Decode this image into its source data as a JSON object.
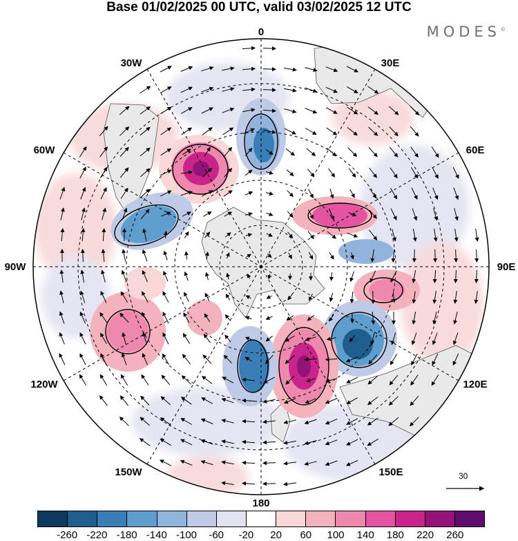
{
  "title": "Base 01/02/2025 00 UTC, valid 03/02/2025 12 UTC",
  "brand": "MODES",
  "brand_mark": "©",
  "map": {
    "projection": "south-polar-stereographic",
    "longitude_labels": {
      "top": "0",
      "top_left": "30W",
      "top_right": "30E",
      "upper_left": "60W",
      "upper_right": "60E",
      "left": "90W",
      "right": "90E",
      "lower_left": "120W",
      "lower_right": "120E",
      "bottom_left": "150W",
      "bottom_right": "150E",
      "bottom": "180"
    },
    "anomaly_centers": [
      {
        "sign": "negative",
        "level": -180,
        "lon": "~5E"
      },
      {
        "sign": "positive",
        "level": 180,
        "lon": "~25W"
      },
      {
        "sign": "negative",
        "level": -140,
        "lon": "~65W"
      },
      {
        "sign": "positive",
        "level": 140,
        "lon": "~60E"
      },
      {
        "sign": "negative",
        "level": -100,
        "lon": "~85E"
      },
      {
        "sign": "positive",
        "level": 100,
        "lon": "~100E"
      },
      {
        "sign": "negative",
        "level": -220,
        "lon": "~135E"
      },
      {
        "sign": "positive",
        "level": 220,
        "lon": "~165E"
      },
      {
        "sign": "negative",
        "level": -180,
        "lon": "~175W"
      },
      {
        "sign": "positive",
        "level": 140,
        "lon": "~115W"
      },
      {
        "sign": "positive",
        "level": 100,
        "lon": "~150W"
      }
    ],
    "vector_scale": "30"
  },
  "colorbar": {
    "colors": [
      "#0e3a5e",
      "#1d5e8e",
      "#3a7eb8",
      "#5d9ecf",
      "#92b4dc",
      "#bfcbe6",
      "#e2e2f1",
      "#ffffff",
      "#f8d7d7",
      "#f4b2bd",
      "#ee88ae",
      "#e554a0",
      "#c8248a",
      "#951378",
      "#5e0c6e"
    ],
    "ticks": [
      "-260",
      "-220",
      "-180",
      "-140",
      "-100",
      "-60",
      "-20",
      "20",
      "60",
      "100",
      "140",
      "180",
      "220",
      "260"
    ]
  }
}
